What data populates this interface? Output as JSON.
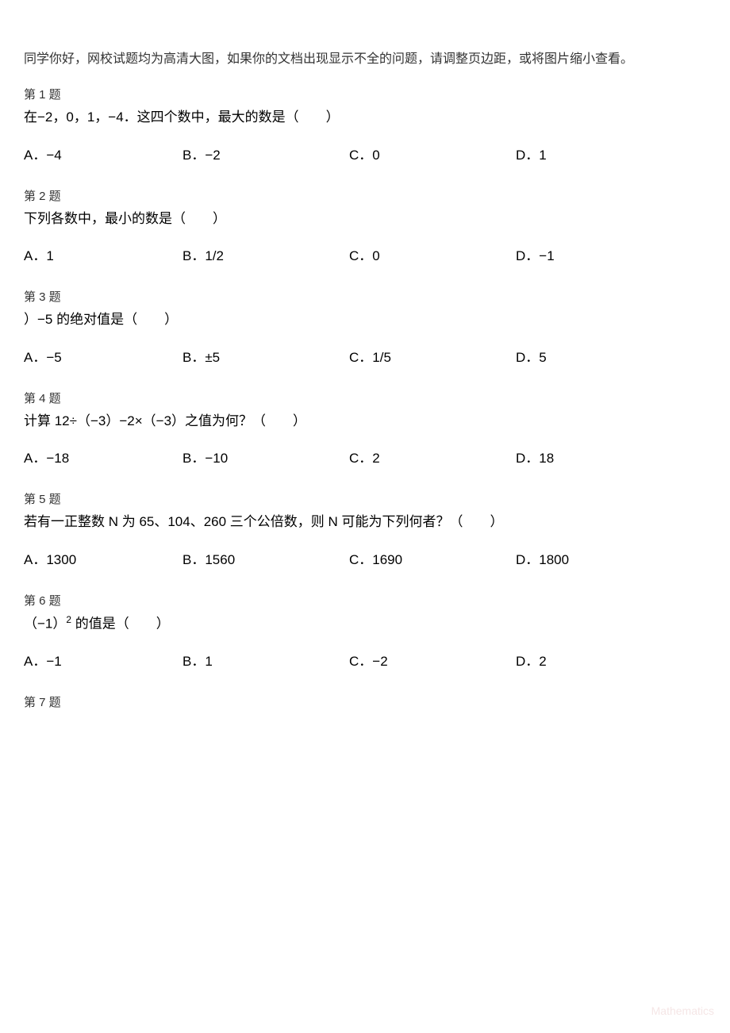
{
  "intro": "同学你好，网校试题均为高清大图，如果你的文档出现显示不全的问题，请调整页边距，或将图片缩小查看。",
  "questions": [
    {
      "number": "第 1 题",
      "stem": "在−2，0，1，−4．这四个数中，最大的数是（　　）",
      "options": {
        "A": "A．−4",
        "B": "B．−2",
        "C": "C．0",
        "D": "D．1"
      }
    },
    {
      "number": "第 2 题",
      "stem": "下列各数中，最小的数是（　　）",
      "options": {
        "A": "A．1",
        "B": "B．1/2",
        "C": "C．0",
        "D": "D．−1"
      }
    },
    {
      "number": "第 3 题",
      "stem": "）−5 的绝对值是（　　）",
      "options": {
        "A": "A．−5",
        "B": "B．±5",
        "C": "C．1/5",
        "D": "D．5"
      }
    },
    {
      "number": "第 4 题",
      "stem": "计算 12÷（−3）−2×（−3）之值为何？（　　）",
      "options": {
        "A": "A．−18",
        "B": "B．−10",
        "C": "C．2",
        "D": "D．18"
      }
    },
    {
      "number": "第 5 题",
      "stem": "若有一正整数 N 为 65、104、260 三个公倍数，则 N 可能为下列何者？（　　）",
      "options": {
        "A": "A．1300",
        "B": "B．1560",
        "C": "C．1690",
        "D": "D．1800"
      }
    },
    {
      "number": "第 6 题",
      "stem_prefix": "（−1）",
      "stem_sup": "2",
      "stem_suffix": " 的值是（　　）",
      "options": {
        "A": "A．−1",
        "B": "B．1",
        "C": "C．−2",
        "D": "D．2"
      }
    }
  ],
  "q7_number": "第 7 题",
  "watermark": "Mathematics",
  "colors": {
    "background": "#ffffff",
    "text": "#000000",
    "label": "#333333",
    "watermark": "#f5e6e6"
  }
}
